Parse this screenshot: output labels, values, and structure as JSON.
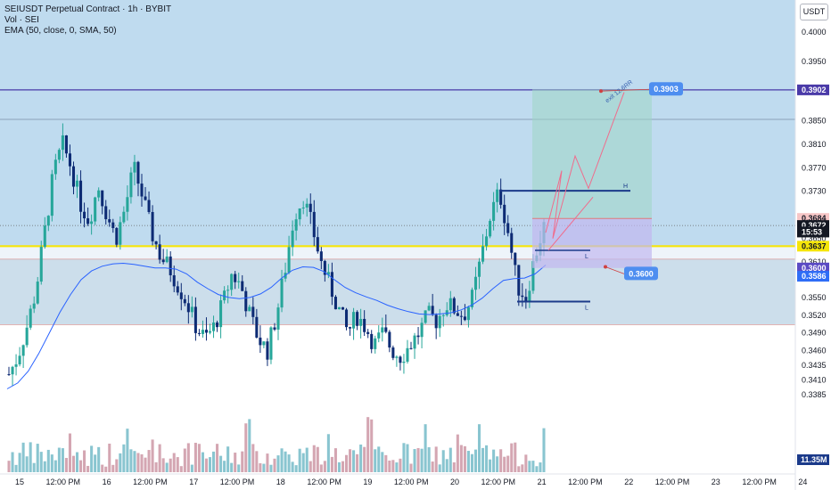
{
  "legend": {
    "title": "SEIUSDT Perpetual Contract · 1h · BYBIT",
    "vol": "Vol · SEI",
    "ema": "EMA (50, close, 0, SMA, 50)"
  },
  "currency_badge": "USDT",
  "colors": {
    "bull": "#26a69a",
    "bear": "#0d2b74",
    "ema": "#2962ff",
    "purple_line": "#4a3aa8",
    "yellow_line": "#f5e50a",
    "pink_path": "#f06c8c",
    "marker_line": "#1b3a8a",
    "bg_zone": "#bcd9ee",
    "price_tag": "#2f6df6"
  },
  "chart_data": {
    "type": "candlestick",
    "y_axis_ticks": [
      "0.4000",
      "0.3950",
      "0.3902",
      "0.3850",
      "0.3810",
      "0.3770",
      "0.3730",
      "0.3684",
      "0.3672",
      "0.3650",
      "0.3637",
      "0.3610",
      "0.3600",
      "0.3586",
      "0.3550",
      "0.3520",
      "0.3490",
      "0.3460",
      "0.3435",
      "0.3410",
      "0.3385",
      "11.35M"
    ],
    "ylim": [
      0.3365,
      0.4025
    ],
    "x_axis_ticks": [
      "15",
      "12:00 PM",
      "16",
      "12:00 PM",
      "17",
      "12:00 PM",
      "18",
      "12:00 PM",
      "19",
      "12:00 PM",
      "20",
      "12:00 PM",
      "21",
      "12:00 PM",
      "22",
      "12:00 PM",
      "23",
      "12:00 PM",
      "24"
    ],
    "levels": {
      "purple_resistance": 0.3902,
      "upper_zone": 0.3852,
      "yellow_support": 0.3637,
      "lower_zone_top": 0.3615,
      "lower_zone_bottom": 0.3504,
      "dotted_current": 0.3672
    },
    "price_tags": [
      {
        "label": "0.3902",
        "value": 0.3902,
        "kind": "purple"
      },
      {
        "label": "0.3684",
        "value": 0.3684,
        "kind": "red"
      },
      {
        "label": "0.3672",
        "value": 0.3672,
        "kind": "dark"
      },
      {
        "label": "15:53",
        "value": 0.3661,
        "kind": "dark"
      },
      {
        "label": "0.3637",
        "value": 0.3637,
        "kind": "yellow"
      },
      {
        "label": "0.3600",
        "value": 0.36,
        "kind": "indigo"
      },
      {
        "label": "0.3586",
        "value": 0.3586,
        "kind": "blue"
      }
    ],
    "annotations": [
      {
        "label": "0.3903",
        "value": 0.3903
      },
      {
        "label": "0.3600",
        "value": 0.36
      },
      {
        "label": "exit 12.6RR"
      },
      {
        "label": "H"
      },
      {
        "label": "L"
      },
      {
        "label": "L"
      }
    ],
    "close_path": [
      0.342,
      0.345,
      0.35,
      0.356,
      0.366,
      0.376,
      0.381,
      0.377,
      0.371,
      0.368,
      0.374,
      0.369,
      0.365,
      0.37,
      0.377,
      0.372,
      0.366,
      0.362,
      0.36,
      0.357,
      0.354,
      0.35,
      0.348,
      0.35,
      0.354,
      0.359,
      0.357,
      0.352,
      0.348,
      0.346,
      0.352,
      0.36,
      0.369,
      0.372,
      0.367,
      0.361,
      0.357,
      0.353,
      0.349,
      0.352,
      0.35,
      0.347,
      0.349,
      0.346,
      0.345,
      0.347,
      0.349,
      0.352,
      0.351,
      0.354,
      0.353,
      0.352,
      0.355,
      0.362,
      0.369,
      0.373,
      0.366,
      0.357,
      0.355,
      0.362,
      0.367
    ],
    "ema_path": [
      0.3395,
      0.3405,
      0.3425,
      0.3455,
      0.349,
      0.3525,
      0.3555,
      0.358,
      0.3595,
      0.3603,
      0.3607,
      0.3608,
      0.3606,
      0.3603,
      0.36,
      0.36,
      0.3598,
      0.359,
      0.3576,
      0.3565,
      0.3555,
      0.355,
      0.3548,
      0.355,
      0.3556,
      0.3567,
      0.3583,
      0.3596,
      0.3602,
      0.3601,
      0.3594,
      0.358,
      0.3567,
      0.3558,
      0.3551,
      0.3545,
      0.3537,
      0.3531,
      0.3526,
      0.3522,
      0.3521,
      0.3522,
      0.3524,
      0.3529,
      0.3537,
      0.3549,
      0.3565,
      0.3579,
      0.3582,
      0.3583,
      0.359,
      0.3605
    ],
    "volume_max": "11.35M"
  }
}
